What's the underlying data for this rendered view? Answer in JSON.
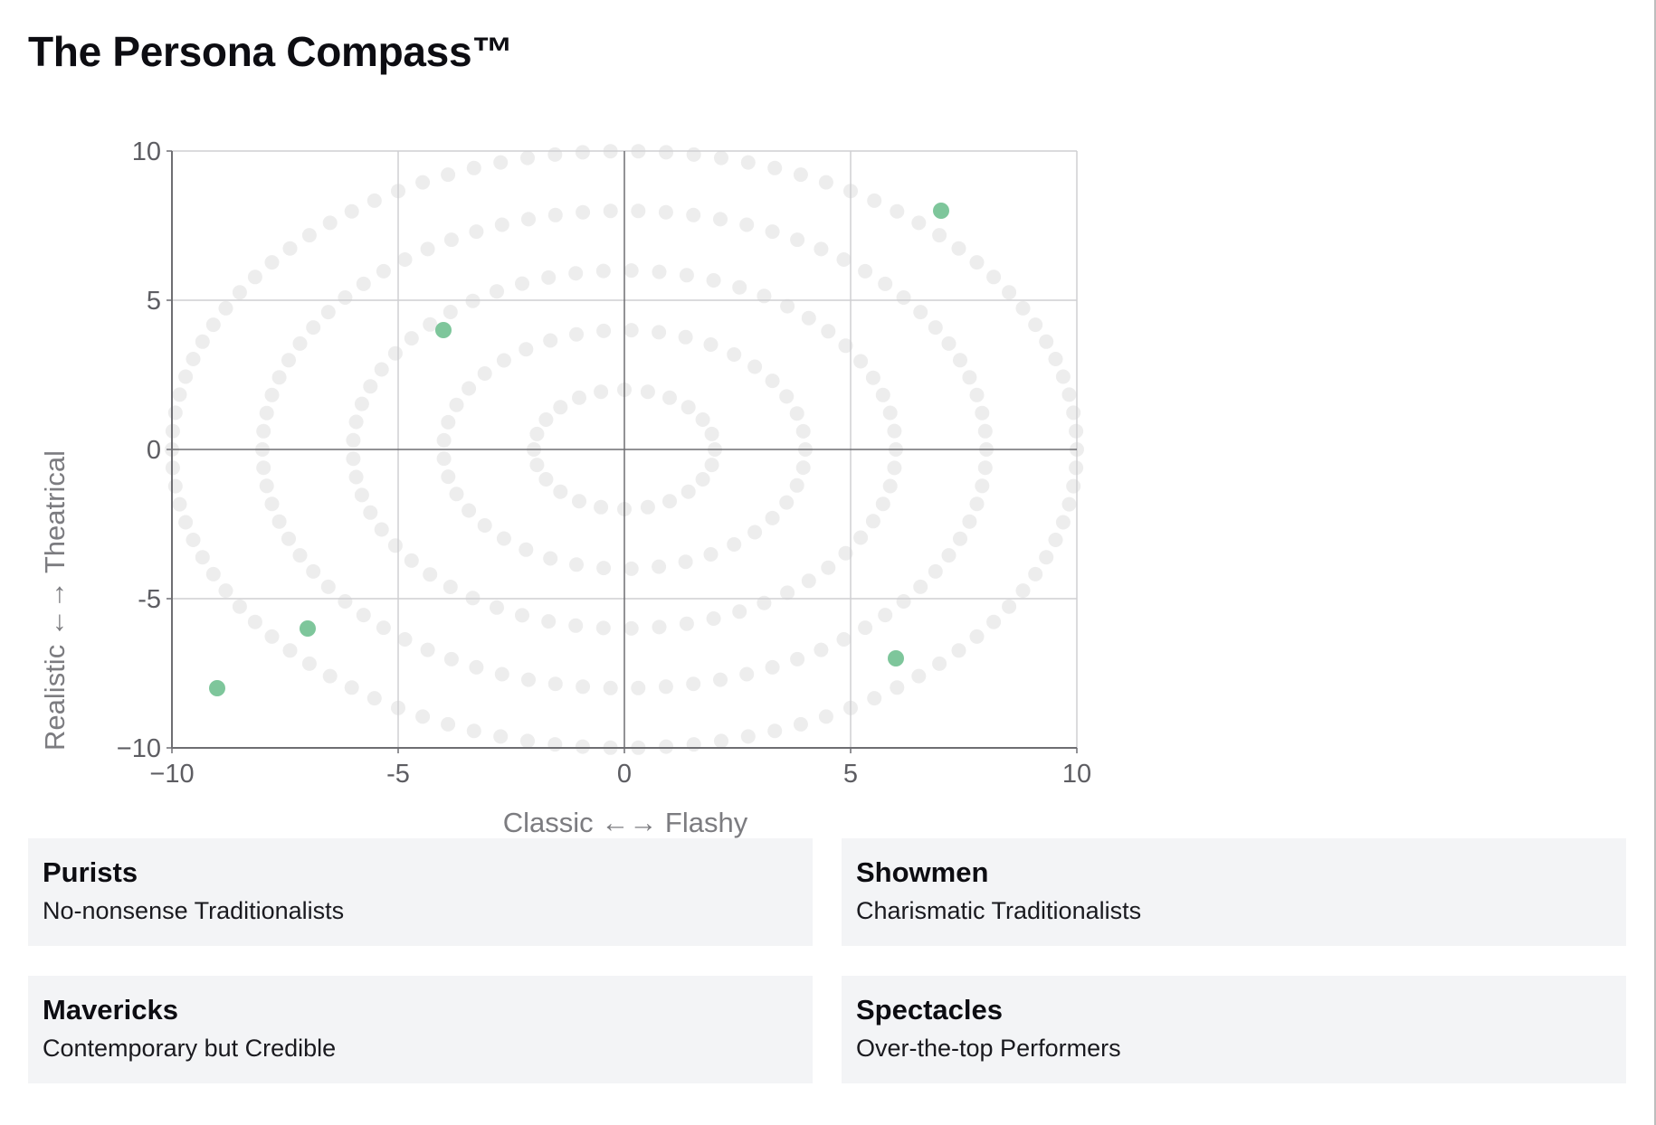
{
  "page": {
    "title": "The Persona Compass™"
  },
  "chart_data": {
    "type": "scatter",
    "xlabel": "Classic ←→ Flashy",
    "ylabel": "Realistic ←→ Theatrical",
    "xlim": [
      -10,
      10
    ],
    "ylim": [
      -10,
      10
    ],
    "x_ticks": [
      -10,
      -5,
      0,
      5,
      10
    ],
    "y_ticks": [
      -10,
      -5,
      0,
      5,
      10
    ],
    "x_tick_labels": [
      "−10",
      "-5",
      "0",
      "5",
      "10"
    ],
    "y_tick_labels": [
      "10",
      "5",
      "0",
      "-5",
      "−10"
    ],
    "grid": true,
    "series": [
      {
        "points": [
          {
            "x": 7,
            "y": 8
          },
          {
            "x": -4,
            "y": 4
          },
          {
            "x": -7,
            "y": -6
          },
          {
            "x": -9,
            "y": -8
          },
          {
            "x": 6,
            "y": -7
          }
        ],
        "color": "#7ec69b"
      }
    ],
    "background_rings": {
      "radii": [
        2,
        4,
        6,
        8,
        10
      ],
      "color": "#ededed"
    }
  },
  "quadrants": [
    {
      "title": "Purists",
      "description": "No-nonsense Traditionalists"
    },
    {
      "title": "Showmen",
      "description": "Charismatic Traditionalists"
    },
    {
      "title": "Mavericks",
      "description": "Contemporary but Credible"
    },
    {
      "title": "Spectacles",
      "description": "Over-the-top Performers"
    }
  ]
}
